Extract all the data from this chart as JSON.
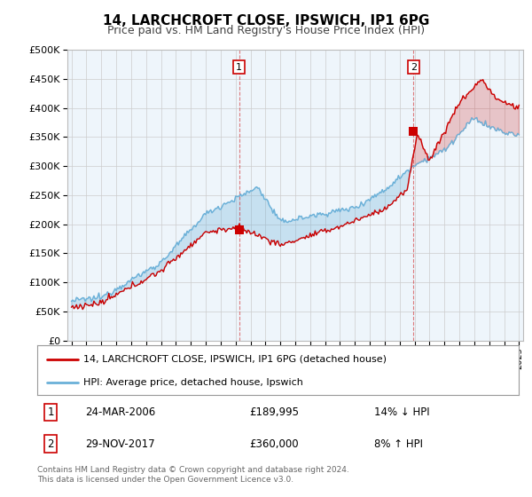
{
  "title": "14, LARCHCROFT CLOSE, IPSWICH, IP1 6PG",
  "subtitle": "Price paid vs. HM Land Registry's House Price Index (HPI)",
  "ylabel_ticks": [
    "£0",
    "£50K",
    "£100K",
    "£150K",
    "£200K",
    "£250K",
    "£300K",
    "£350K",
    "£400K",
    "£450K",
    "£500K"
  ],
  "ytick_values": [
    0,
    50000,
    100000,
    150000,
    200000,
    250000,
    300000,
    350000,
    400000,
    450000,
    500000
  ],
  "ylim": [
    0,
    500000
  ],
  "xlim_start": 1994.7,
  "xlim_end": 2025.3,
  "hpi_color": "#6ab0d8",
  "price_color": "#cc0000",
  "fill_color": "#d0e8f5",
  "transaction1_x": 2006.23,
  "transaction1_y": 189995,
  "transaction2_x": 2017.92,
  "transaction2_y": 360000,
  "legend_label1": "14, LARCHCROFT CLOSE, IPSWICH, IP1 6PG (detached house)",
  "legend_label2": "HPI: Average price, detached house, Ipswich",
  "table_row1_num": "1",
  "table_row1_date": "24-MAR-2006",
  "table_row1_price": "£189,995",
  "table_row1_hpi": "14% ↓ HPI",
  "table_row2_num": "2",
  "table_row2_date": "29-NOV-2017",
  "table_row2_price": "£360,000",
  "table_row2_hpi": "8% ↑ HPI",
  "footer": "Contains HM Land Registry data © Crown copyright and database right 2024.\nThis data is licensed under the Open Government Licence v3.0.",
  "background_color": "#ffffff",
  "grid_color": "#cccccc",
  "chart_bg": "#eef5fb"
}
